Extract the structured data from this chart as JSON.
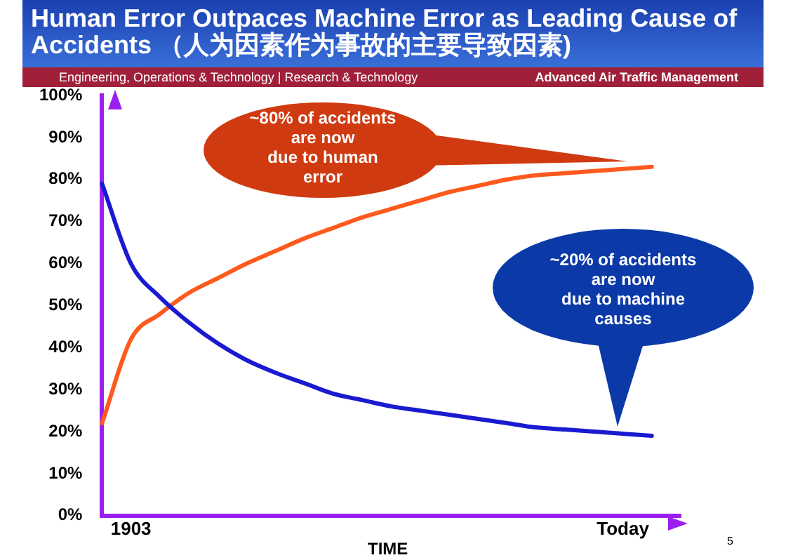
{
  "chart_data": {
    "type": "line",
    "title": "Human Error Outpaces Machine Error as Leading Cause of Accidents （人为因素作为事故的主要导致因素)",
    "subtitle": "Engineering, Operations & Technology | Research & Technology",
    "xlabel": "TIME",
    "annotations": [
      "Advanced Air Traffic Management",
      "~80% of accidents\nare now\ndue to human\nerror",
      "~20% of accidents\nare now\ndue to machine\ncauses",
      "5"
    ],
    "categories": [
      null,
      "1903",
      null,
      null,
      null,
      null,
      null,
      null,
      null,
      null,
      null,
      null,
      null,
      null,
      null,
      null,
      null,
      null,
      "Today",
      null,
      null
    ],
    "ylim": [
      0,
      100
    ],
    "yticks": [
      {
        "value": 0,
        "label": "0%"
      },
      {
        "value": 10,
        "label": "10%"
      },
      {
        "value": 20,
        "label": "20%"
      },
      {
        "value": 30,
        "label": "30%"
      },
      {
        "value": 40,
        "label": "40%"
      },
      {
        "value": 50,
        "label": "50%"
      },
      {
        "value": 60,
        "label": "60%"
      },
      {
        "value": 70,
        "label": "70%"
      },
      {
        "value": 80,
        "label": "80%"
      },
      {
        "value": 90,
        "label": "90%"
      },
      {
        "value": 100,
        "label": "100%"
      }
    ],
    "grid": false,
    "legend": false,
    "marker": "none",
    "line_style": "solid",
    "series": [
      {
        "color": "#1a1ad0",
        "values": [
          79,
          60,
          52,
          46,
          41,
          37,
          34,
          31.5,
          29,
          27.5,
          26,
          25,
          24,
          23,
          22,
          21,
          20.5,
          20,
          19.5,
          19,
          null
        ]
      },
      {
        "color": "#ff5a1e",
        "values": [
          22,
          42,
          48,
          53,
          56.5,
          60,
          63,
          66,
          68.5,
          71,
          73,
          75,
          77,
          78.5,
          80,
          81,
          81.5,
          82,
          82.5,
          83,
          null
        ]
      }
    ]
  }
}
